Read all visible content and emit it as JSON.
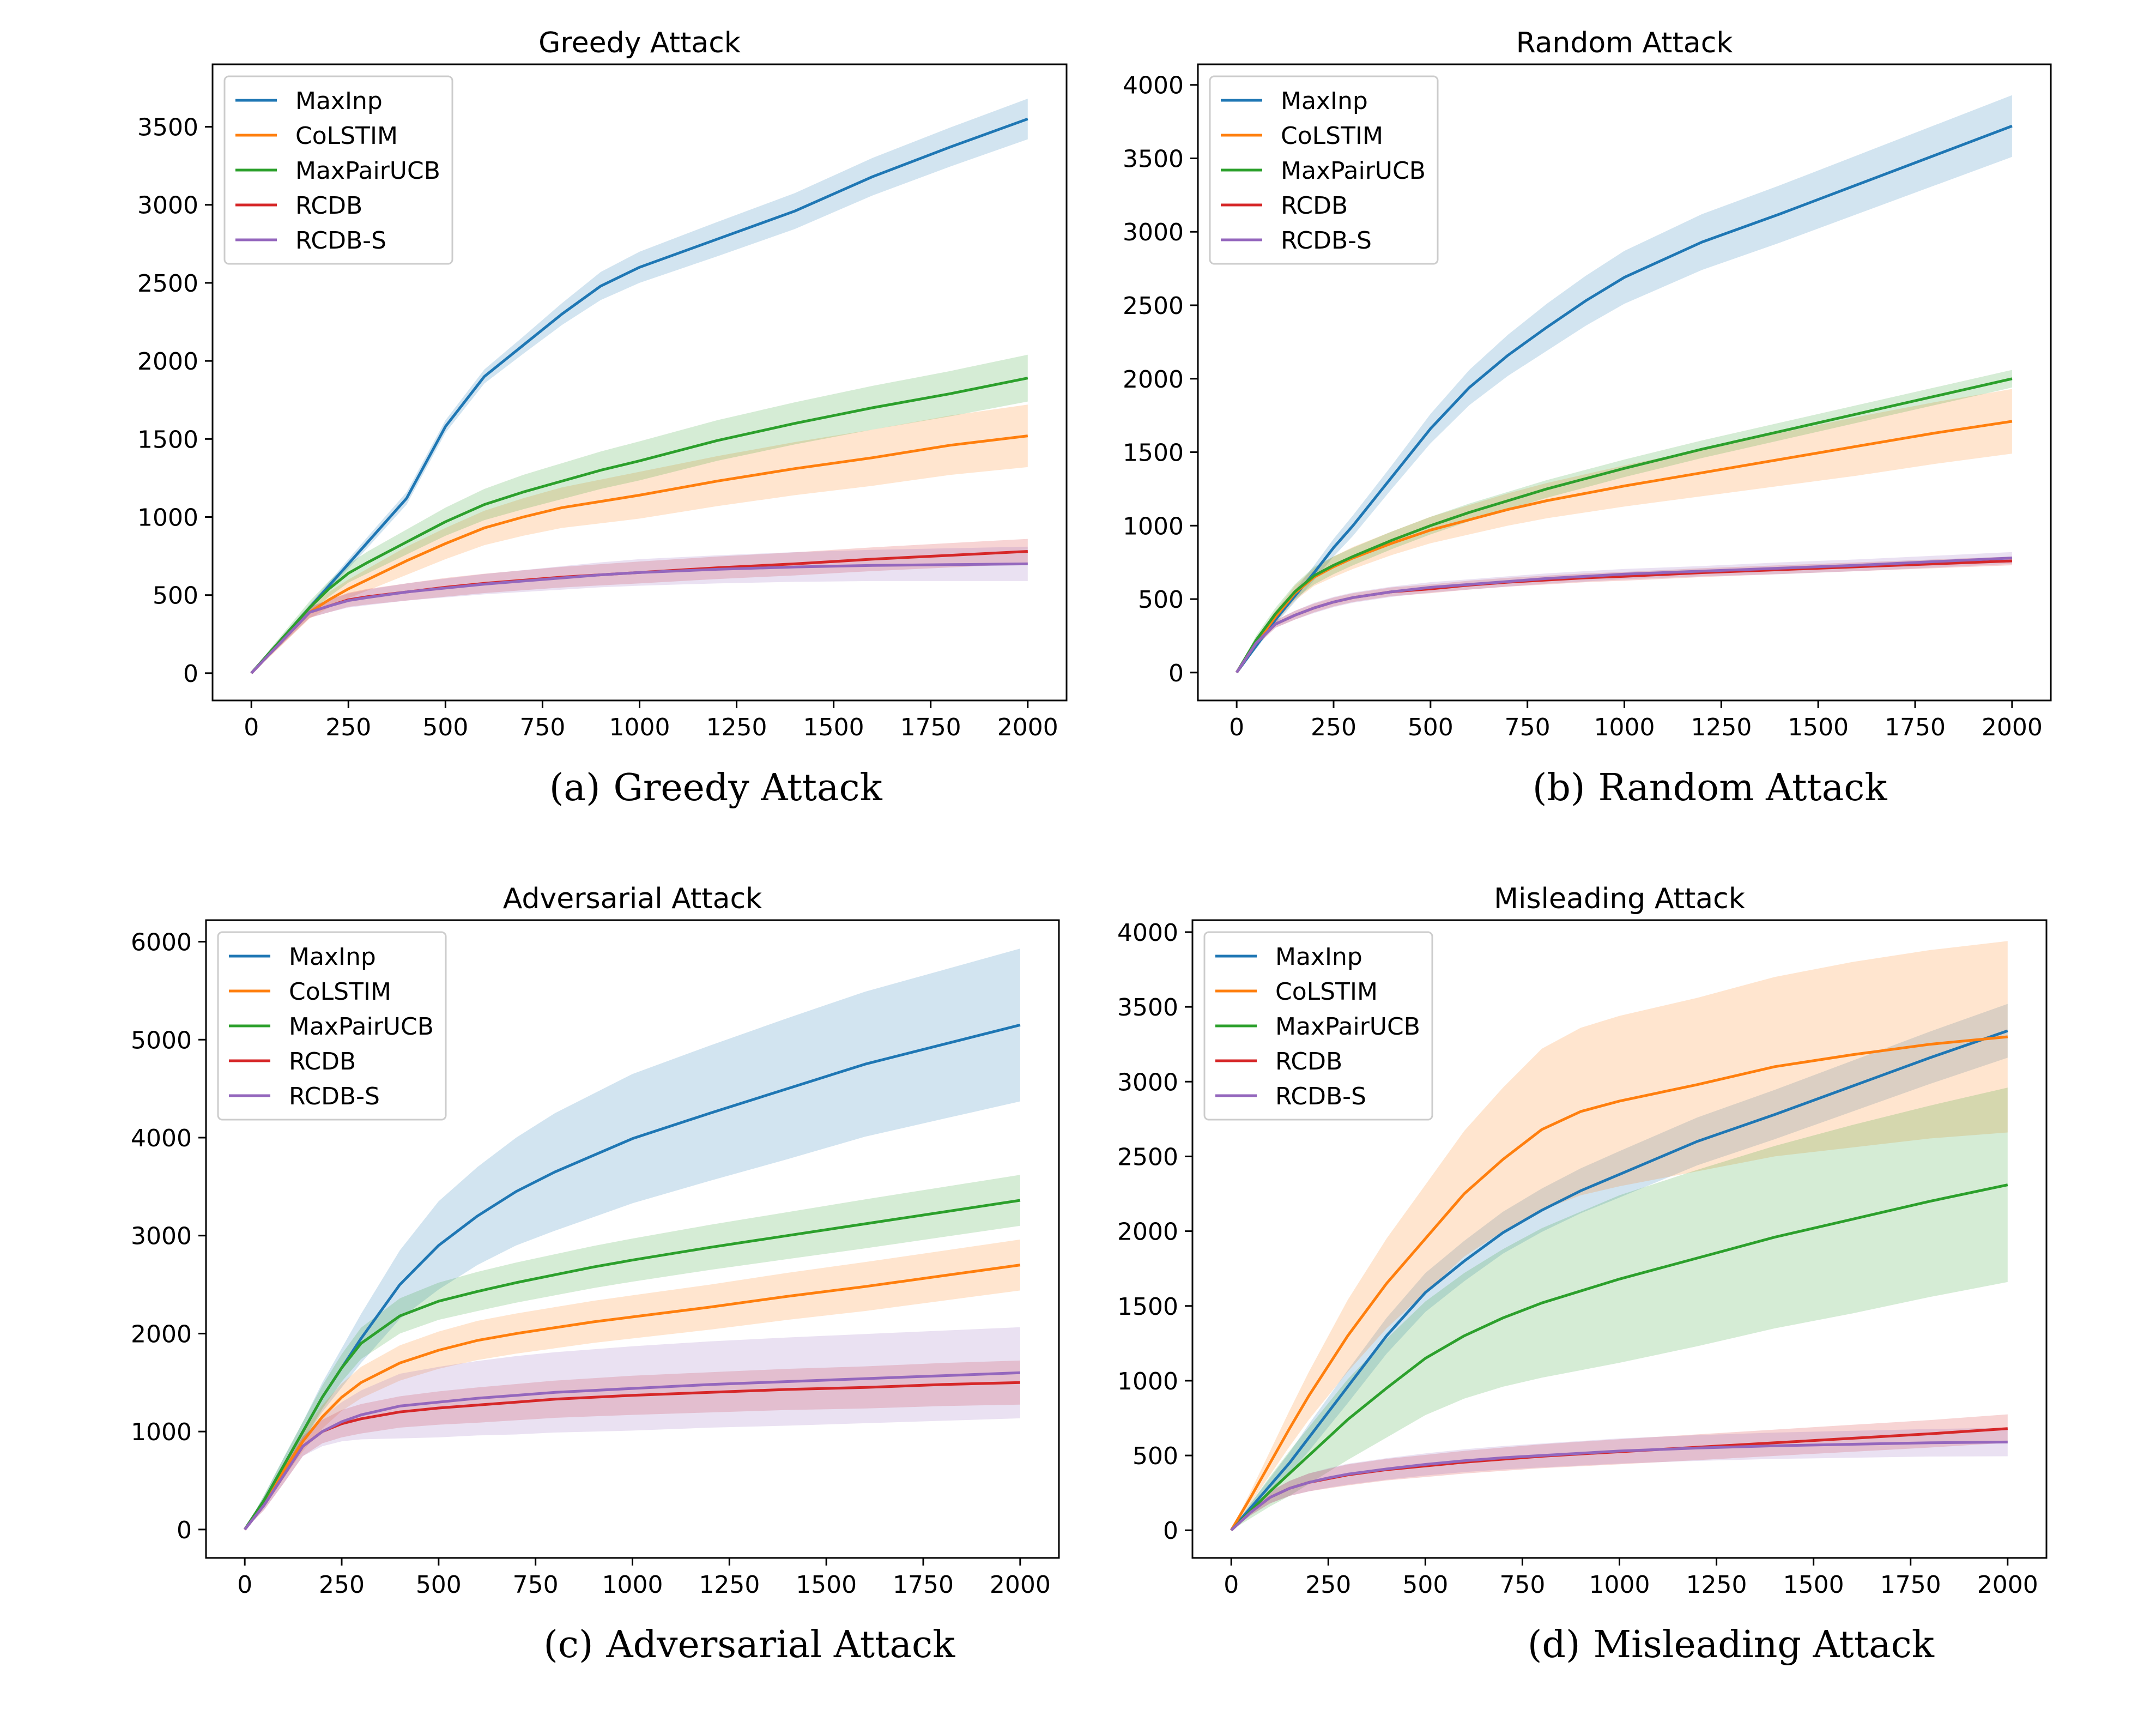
{
  "colors": {
    "MaxInp": "#1f77b4",
    "CoLSTIM": "#ff7f0e",
    "MaxPairUCB": "#2ca02c",
    "RCDB": "#d62728",
    "RCDB-S": "#9467bd"
  },
  "chart_data": [
    {
      "type": "line",
      "title": "Greedy Attack",
      "caption_label": "(a)",
      "caption_text": "Greedy Attack",
      "legend_position": "upper-left",
      "xlim": [
        -100,
        2100
      ],
      "ylim": [
        -175,
        3900
      ],
      "xticks": [
        0,
        250,
        500,
        750,
        1000,
        1250,
        1500,
        1750,
        2000
      ],
      "yticks": [
        0,
        500,
        1000,
        1500,
        2000,
        2500,
        3000,
        3500
      ],
      "x": [
        0,
        50,
        100,
        150,
        200,
        250,
        300,
        400,
        500,
        600,
        700,
        800,
        900,
        1000,
        1200,
        1400,
        1600,
        1800,
        2000
      ],
      "series": [
        {
          "name": "MaxInp",
          "values": [
            0,
            140,
            280,
            420,
            560,
            700,
            840,
            1120,
            1580,
            1900,
            2100,
            2300,
            2480,
            2600,
            2780,
            2960,
            3180,
            3370,
            3550
          ],
          "band": [
            0,
            10,
            15,
            20,
            25,
            30,
            35,
            40,
            40,
            45,
            55,
            70,
            90,
            100,
            110,
            115,
            120,
            125,
            130
          ]
        },
        {
          "name": "CoLSTIM",
          "values": [
            0,
            130,
            260,
            390,
            470,
            540,
            600,
            720,
            830,
            930,
            1000,
            1060,
            1100,
            1140,
            1230,
            1310,
            1380,
            1460,
            1520
          ],
          "band": [
            0,
            20,
            30,
            40,
            50,
            60,
            70,
            90,
            100,
            110,
            120,
            130,
            140,
            150,
            160,
            170,
            180,
            190,
            200
          ]
        },
        {
          "name": "MaxPairUCB",
          "values": [
            0,
            140,
            280,
            420,
            540,
            640,
            710,
            840,
            970,
            1080,
            1160,
            1230,
            1300,
            1360,
            1490,
            1600,
            1700,
            1790,
            1890
          ],
          "band": [
            0,
            20,
            30,
            40,
            50,
            60,
            70,
            80,
            90,
            100,
            110,
            115,
            120,
            125,
            130,
            135,
            140,
            145,
            150
          ]
        },
        {
          "name": "RCDB",
          "values": [
            0,
            130,
            260,
            390,
            430,
            470,
            490,
            520,
            550,
            575,
            595,
            615,
            630,
            645,
            675,
            700,
            730,
            755,
            780
          ],
          "band": [
            0,
            15,
            25,
            35,
            40,
            45,
            50,
            55,
            60,
            62,
            64,
            66,
            68,
            70,
            72,
            74,
            76,
            78,
            80
          ]
        },
        {
          "name": "RCDB-S",
          "values": [
            0,
            130,
            260,
            390,
            430,
            465,
            485,
            520,
            545,
            570,
            590,
            610,
            630,
            645,
            665,
            680,
            690,
            695,
            700
          ],
          "band": [
            0,
            15,
            25,
            35,
            40,
            45,
            50,
            55,
            60,
            65,
            70,
            75,
            80,
            85,
            90,
            95,
            100,
            105,
            110
          ]
        }
      ]
    },
    {
      "type": "line",
      "title": "Random Attack",
      "caption_label": "(b)",
      "caption_text": "Random Attack",
      "legend_position": "upper-left",
      "xlim": [
        -100,
        2100
      ],
      "ylim": [
        -190,
        4140
      ],
      "xticks": [
        0,
        250,
        500,
        750,
        1000,
        1250,
        1500,
        1750,
        2000
      ],
      "yticks": [
        0,
        500,
        1000,
        1500,
        2000,
        2500,
        3000,
        3500,
        4000
      ],
      "x": [
        0,
        50,
        100,
        150,
        200,
        250,
        300,
        400,
        500,
        600,
        700,
        800,
        900,
        1000,
        1200,
        1400,
        1600,
        1800,
        2000
      ],
      "series": [
        {
          "name": "MaxInp",
          "values": [
            0,
            180,
            360,
            520,
            680,
            850,
            1000,
            1330,
            1660,
            1940,
            2160,
            2350,
            2530,
            2690,
            2930,
            3120,
            3320,
            3520,
            3720
          ],
          "band": [
            0,
            20,
            30,
            40,
            50,
            60,
            70,
            80,
            100,
            120,
            140,
            160,
            170,
            180,
            190,
            195,
            200,
            205,
            210
          ]
        },
        {
          "name": "CoLSTIM",
          "values": [
            0,
            200,
            380,
            540,
            650,
            720,
            780,
            880,
            970,
            1040,
            1110,
            1170,
            1220,
            1270,
            1360,
            1450,
            1540,
            1630,
            1710
          ],
          "band": [
            0,
            30,
            40,
            50,
            60,
            70,
            75,
            80,
            90,
            100,
            110,
            120,
            130,
            140,
            160,
            180,
            200,
            210,
            220
          ]
        },
        {
          "name": "MaxPairUCB",
          "values": [
            0,
            220,
            400,
            550,
            660,
            730,
            790,
            900,
            1000,
            1090,
            1170,
            1250,
            1320,
            1390,
            1520,
            1640,
            1760,
            1880,
            2000
          ],
          "band": [
            0,
            30,
            40,
            50,
            60,
            60,
            60,
            60,
            60,
            60,
            60,
            60,
            60,
            60,
            60,
            60,
            60,
            60,
            60
          ]
        },
        {
          "name": "RCDB",
          "values": [
            0,
            200,
            330,
            390,
            440,
            480,
            510,
            550,
            570,
            595,
            615,
            630,
            645,
            655,
            680,
            700,
            720,
            740,
            760
          ],
          "band": [
            0,
            20,
            25,
            30,
            30,
            30,
            30,
            30,
            30,
            30,
            30,
            30,
            30,
            30,
            30,
            30,
            30,
            30,
            30
          ]
        },
        {
          "name": "RCDB-S",
          "values": [
            0,
            200,
            330,
            390,
            440,
            480,
            510,
            550,
            580,
            600,
            620,
            640,
            655,
            670,
            690,
            710,
            730,
            755,
            780
          ],
          "band": [
            0,
            20,
            25,
            30,
            35,
            35,
            35,
            35,
            35,
            35,
            35,
            35,
            35,
            35,
            35,
            40,
            40,
            40,
            40
          ]
        }
      ]
    },
    {
      "type": "line",
      "title": "Adversarial Attack",
      "caption_label": "(c)",
      "caption_text": "Adversarial Attack",
      "legend_position": "upper-left",
      "xlim": [
        -100,
        2100
      ],
      "ylim": [
        -290,
        6220
      ],
      "xticks": [
        0,
        250,
        500,
        750,
        1000,
        1250,
        1500,
        1750,
        2000
      ],
      "yticks": [
        0,
        1000,
        2000,
        3000,
        4000,
        5000,
        6000
      ],
      "x": [
        0,
        50,
        100,
        150,
        200,
        250,
        300,
        400,
        500,
        600,
        700,
        800,
        900,
        1000,
        1200,
        1400,
        1600,
        1800,
        2000
      ],
      "series": [
        {
          "name": "MaxInp",
          "values": [
            0,
            300,
            650,
            1000,
            1350,
            1650,
            1950,
            2500,
            2900,
            3200,
            3450,
            3650,
            3820,
            3990,
            4250,
            4500,
            4750,
            4950,
            5150
          ],
          "band": [
            0,
            50,
            80,
            100,
            150,
            200,
            250,
            350,
            450,
            500,
            550,
            600,
            630,
            660,
            690,
            720,
            740,
            760,
            780
          ]
        },
        {
          "name": "CoLSTIM",
          "values": [
            0,
            280,
            600,
            900,
            1150,
            1350,
            1500,
            1700,
            1830,
            1930,
            2000,
            2060,
            2120,
            2170,
            2270,
            2380,
            2480,
            2590,
            2700
          ],
          "band": [
            0,
            50,
            80,
            100,
            120,
            140,
            160,
            180,
            190,
            200,
            205,
            210,
            215,
            220,
            230,
            240,
            250,
            255,
            260
          ]
        },
        {
          "name": "MaxPairUCB",
          "values": [
            0,
            300,
            650,
            1000,
            1350,
            1650,
            1900,
            2180,
            2330,
            2430,
            2520,
            2600,
            2680,
            2750,
            2880,
            3000,
            3120,
            3240,
            3360
          ],
          "band": [
            0,
            50,
            80,
            100,
            120,
            140,
            160,
            180,
            190,
            200,
            205,
            210,
            215,
            220,
            230,
            240,
            250,
            255,
            260
          ]
        },
        {
          "name": "RCDB",
          "values": [
            0,
            250,
            550,
            850,
            1000,
            1080,
            1130,
            1200,
            1240,
            1270,
            1300,
            1330,
            1350,
            1370,
            1400,
            1430,
            1450,
            1480,
            1500
          ],
          "band": [
            0,
            50,
            80,
            100,
            120,
            140,
            150,
            160,
            170,
            180,
            185,
            190,
            195,
            200,
            205,
            210,
            215,
            220,
            225
          ]
        },
        {
          "name": "RCDB-S",
          "values": [
            0,
            250,
            550,
            850,
            1000,
            1100,
            1170,
            1260,
            1300,
            1340,
            1370,
            1400,
            1420,
            1440,
            1480,
            1510,
            1540,
            1570,
            1600
          ],
          "band": [
            0,
            50,
            80,
            100,
            150,
            200,
            250,
            330,
            360,
            380,
            400,
            410,
            420,
            430,
            440,
            450,
            455,
            460,
            465
          ]
        }
      ]
    },
    {
      "type": "line",
      "title": "Misleading Attack",
      "caption_label": "(d)",
      "caption_text": "Misleading Attack",
      "legend_position": "upper-left",
      "xlim": [
        -100,
        2100
      ],
      "ylim": [
        -185,
        4080
      ],
      "xticks": [
        0,
        250,
        500,
        750,
        1000,
        1250,
        1500,
        1750,
        2000
      ],
      "yticks": [
        0,
        500,
        1000,
        1500,
        2000,
        2500,
        3000,
        3500,
        4000
      ],
      "x": [
        0,
        50,
        100,
        150,
        200,
        250,
        300,
        400,
        500,
        600,
        700,
        800,
        900,
        1000,
        1200,
        1400,
        1600,
        1800,
        2000
      ],
      "series": [
        {
          "name": "MaxInp",
          "values": [
            0,
            150,
            300,
            450,
            620,
            790,
            960,
            1300,
            1590,
            1800,
            1990,
            2140,
            2270,
            2380,
            2600,
            2780,
            2970,
            3160,
            3340
          ],
          "band": [
            0,
            30,
            50,
            70,
            90,
            100,
            110,
            120,
            130,
            135,
            140,
            145,
            150,
            155,
            160,
            165,
            170,
            175,
            180
          ]
        },
        {
          "name": "CoLSTIM",
          "values": [
            0,
            220,
            450,
            680,
            900,
            1100,
            1300,
            1650,
            1950,
            2250,
            2480,
            2680,
            2800,
            2870,
            2980,
            3100,
            3180,
            3250,
            3300
          ],
          "band": [
            0,
            40,
            80,
            120,
            160,
            200,
            240,
            300,
            360,
            420,
            480,
            540,
            560,
            570,
            580,
            600,
            620,
            630,
            640
          ]
        },
        {
          "name": "MaxPairUCB",
          "values": [
            0,
            130,
            260,
            380,
            500,
            620,
            740,
            950,
            1150,
            1300,
            1420,
            1520,
            1600,
            1680,
            1820,
            1960,
            2080,
            2200,
            2310
          ],
          "band": [
            0,
            50,
            100,
            150,
            190,
            230,
            270,
            330,
            380,
            420,
            460,
            500,
            530,
            560,
            590,
            610,
            630,
            640,
            650
          ]
        },
        {
          "name": "RCDB",
          "values": [
            0,
            120,
            220,
            280,
            320,
            345,
            370,
            405,
            430,
            455,
            475,
            495,
            510,
            525,
            555,
            585,
            615,
            645,
            680
          ],
          "band": [
            0,
            20,
            40,
            50,
            60,
            65,
            70,
            72,
            74,
            76,
            78,
            80,
            82,
            84,
            86,
            88,
            90,
            92,
            95
          ]
        },
        {
          "name": "RCDB-S",
          "values": [
            0,
            120,
            220,
            280,
            320,
            350,
            375,
            410,
            440,
            465,
            485,
            500,
            515,
            530,
            550,
            565,
            575,
            585,
            590
          ],
          "band": [
            0,
            20,
            40,
            50,
            60,
            65,
            70,
            72,
            74,
            76,
            78,
            80,
            82,
            84,
            86,
            88,
            90,
            92,
            95
          ]
        }
      ]
    }
  ]
}
